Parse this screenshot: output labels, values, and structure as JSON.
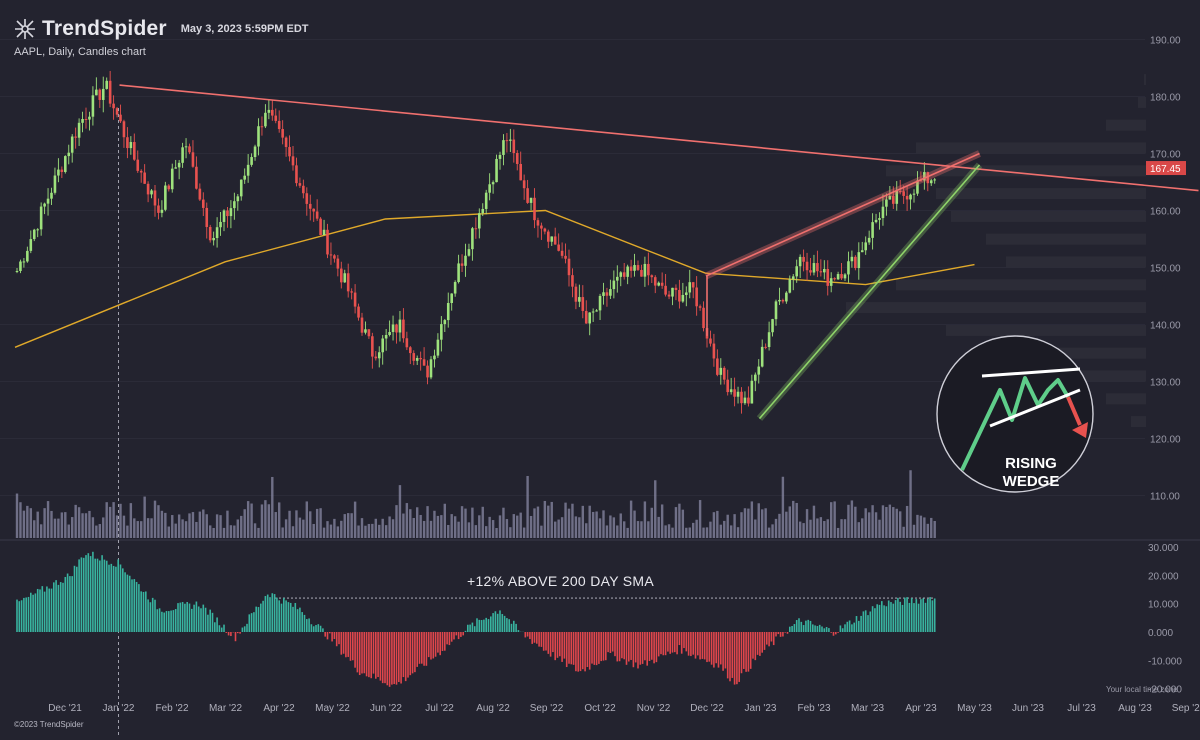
{
  "header": {
    "brand": "TrendSpider",
    "timestamp": "May 3, 2023 5:59PM EDT",
    "subtitle": "AAPL, Daily, Candles chart",
    "timezone_note": "Your local time zone",
    "copyright": "©2023 TrendSpider"
  },
  "colors": {
    "background": "#23232f",
    "bull": "#9ee27d",
    "bear": "#e8524f",
    "sma": "#e0a92a",
    "trendline": "#f0706e",
    "wedge_lower": "#8fd46a",
    "osc_pos": "#38b4a0",
    "osc_neg": "#e0464c",
    "volume": "#8a8aa6",
    "profile": "#2e2e38"
  },
  "chart_data": {
    "type": "candlestick",
    "symbol": "AAPL",
    "interval": "Daily",
    "x_labels": [
      "Dec '21",
      "Jan '22",
      "Feb '22",
      "Mar '22",
      "Apr '22",
      "May '22",
      "Jun '22",
      "Jul '22",
      "Aug '22",
      "Sep '22",
      "Oct '22",
      "Nov '22",
      "Dec '22",
      "Jan '23",
      "Feb '23",
      "Mar '23",
      "Apr '23",
      "May '23",
      "Jun '23",
      "Jul '23",
      "Aug '23",
      "Sep '23"
    ],
    "price_ticks": [
      110,
      120,
      130,
      140,
      150,
      160,
      170,
      180,
      190
    ],
    "last_price": "167.45",
    "price_path": [
      [
        "Dec '21",
        149
      ],
      [
        "Dec '21",
        175
      ],
      [
        "Jan '22",
        182
      ],
      [
        "Jan '22",
        170
      ],
      [
        "Feb '22",
        160
      ],
      [
        "Feb '22",
        172
      ],
      [
        "Mar '22",
        155
      ],
      [
        "Mar '22",
        163
      ],
      [
        "Apr '22",
        178
      ],
      [
        "Apr '22",
        168
      ],
      [
        "May '22",
        157
      ],
      [
        "May '22",
        147
      ],
      [
        "Jun '22",
        135
      ],
      [
        "Jun '22",
        140
      ],
      [
        "Jul '22",
        131
      ],
      [
        "Jul '22",
        147
      ],
      [
        "Aug '22",
        160
      ],
      [
        "Aug '22",
        173
      ],
      [
        "Sep '22",
        160
      ],
      [
        "Sep '22",
        153
      ],
      [
        "Oct '22",
        140
      ],
      [
        "Oct '22",
        147
      ],
      [
        "Nov '22",
        150
      ],
      [
        "Nov '22",
        145
      ],
      [
        "Dec '22",
        146
      ],
      [
        "Dec '22",
        131
      ],
      [
        "Jan '23",
        126
      ],
      [
        "Jan '23",
        142
      ],
      [
        "Feb '23",
        152
      ],
      [
        "Feb '23",
        148
      ],
      [
        "Mar '23",
        151
      ],
      [
        "Mar '23",
        160
      ],
      [
        "Apr '23",
        165
      ],
      [
        "May '23",
        169
      ]
    ],
    "sma200": [
      [
        0,
        136
      ],
      [
        0.25,
        151
      ],
      [
        0.5,
        158.5
      ],
      [
        0.75,
        160
      ],
      [
        1,
        149
      ],
      [
        1.25,
        147
      ],
      [
        1.42,
        150.5
      ]
    ],
    "overlays": {
      "resistance_line": {
        "from": [
          "Jan '22",
          182
        ],
        "to": [
          "Sep '23",
          163.5
        ]
      },
      "wedge_upper": {
        "from": [
          "Dec '22",
          148.5
        ],
        "to": [
          "May '23",
          170
        ]
      },
      "wedge_lower": {
        "from": [
          "Jan '23",
          123.5
        ],
        "to": [
          "May '23",
          168
        ]
      }
    },
    "oscillator": {
      "ticks": [
        -20,
        -10,
        0,
        10,
        20,
        30
      ],
      "tick_labels": [
        "-20.000",
        "-10.000",
        "0.000",
        "10.000",
        "20.000",
        "30.000"
      ],
      "annotation": "+12% ABOVE 200 DAY SMA",
      "reference_level": 12
    },
    "badge": {
      "line1": "RISING",
      "line2": "WEDGE"
    }
  }
}
